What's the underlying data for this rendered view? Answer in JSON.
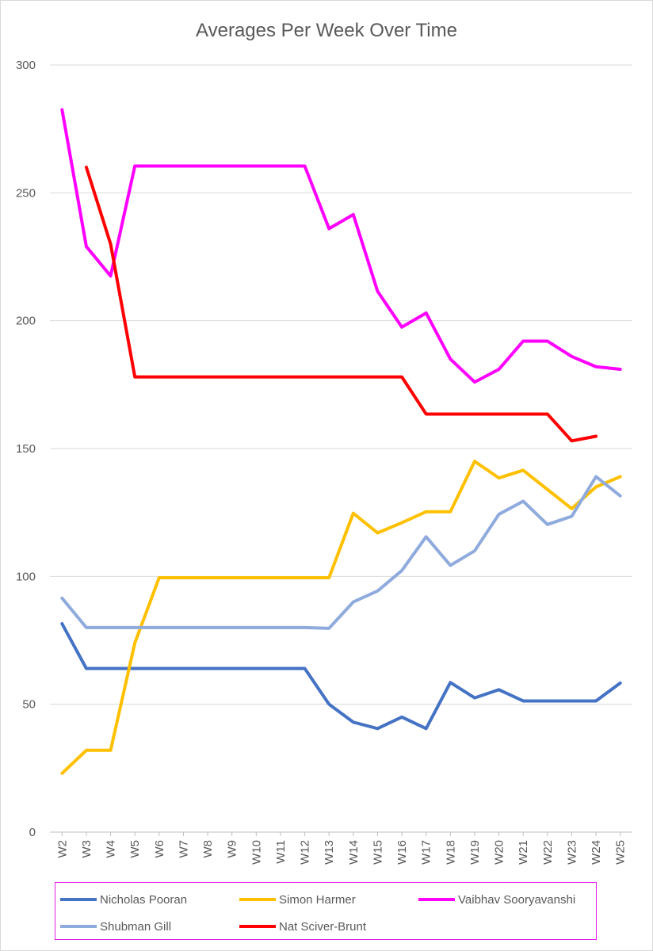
{
  "chart_data": {
    "type": "line",
    "title": "Averages Per Week Over Time",
    "categories": [
      "W2",
      "W3",
      "W4",
      "W5",
      "W6",
      "W7",
      "W8",
      "W9",
      "W10",
      "W11",
      "W12",
      "W13",
      "W14",
      "W15",
      "W16",
      "W17",
      "W18",
      "W19",
      "W20",
      "W21",
      "W22",
      "W23",
      "W24",
      "W25"
    ],
    "ylim": [
      0,
      300
    ],
    "yticks": [
      0,
      50,
      100,
      150,
      200,
      250,
      300
    ],
    "grid": true,
    "legend_position": "bottom",
    "series": [
      {
        "name": "Nicholas Pooran",
        "color": "#4472C4",
        "values": [
          81.5,
          64,
          64,
          64,
          64,
          64,
          64,
          64,
          64,
          64,
          64,
          50,
          43,
          40.5,
          45,
          40.5,
          58.5,
          52.5,
          55.7,
          51.3,
          51.3,
          51.3,
          51.3,
          58.3
        ]
      },
      {
        "name": "Simon Harmer",
        "color": "#FFC000",
        "values": [
          23,
          32,
          32,
          74,
          99.5,
          99.5,
          99.5,
          99.5,
          99.5,
          99.5,
          99.5,
          99.5,
          124.7,
          117,
          121,
          125.3,
          125.3,
          145,
          138.5,
          141.5,
          134,
          126.5,
          135,
          139
        ]
      },
      {
        "name": "Vaibhav Sooryavanshi",
        "color": "#FF00FF",
        "values": [
          282.5,
          229,
          217.5,
          260.5,
          260.5,
          260.5,
          260.5,
          260.5,
          260.5,
          260.5,
          260.5,
          236,
          241.5,
          211.5,
          197.5,
          203,
          185,
          176,
          181,
          192,
          192,
          186,
          182,
          181
        ]
      },
      {
        "name": "Shubman Gill",
        "color": "#8FAADC",
        "values": [
          91.5,
          80,
          80,
          80,
          80,
          80,
          80,
          80,
          80,
          80,
          80,
          79.7,
          90,
          94.3,
          102.3,
          115.5,
          104.3,
          110,
          124.3,
          129.4,
          120.3,
          123.5,
          139,
          131.5
        ]
      },
      {
        "name": "Nat Sciver-Brunt",
        "color": "#FF0000",
        "values": [
          null,
          260,
          230,
          178,
          178,
          178,
          178,
          178,
          178,
          178,
          178,
          178,
          178,
          178,
          178,
          163.5,
          163.5,
          163.5,
          163.5,
          163.5,
          163.5,
          153,
          154.8,
          null
        ]
      }
    ]
  }
}
